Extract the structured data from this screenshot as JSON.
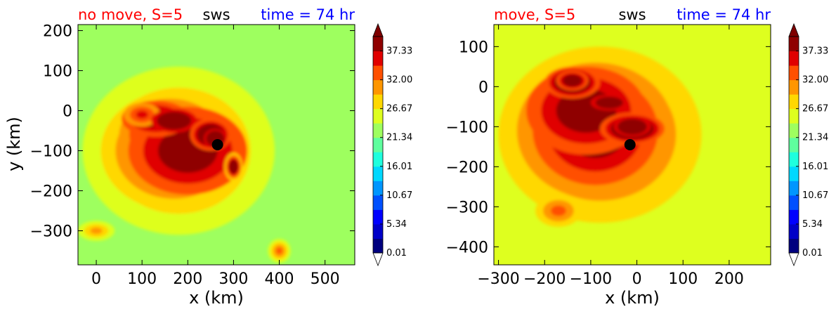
{
  "chart_data": [
    {
      "type": "heatmap",
      "title_left": "no move, S=5",
      "title_center": "sws",
      "title_right": "time = 74 hr",
      "title_colors": {
        "left": "#ff0000",
        "center": "#000000",
        "right": "#0000ff"
      },
      "xlabel": "x (km)",
      "ylabel": "y (km)",
      "xlim": [
        -40,
        565
      ],
      "ylim": [
        -385,
        215
      ],
      "xticks": [
        0,
        100,
        200,
        300,
        400,
        500
      ],
      "xtick_labels": [
        "0",
        "100",
        "200",
        "300",
        "400",
        "500"
      ],
      "yticks": [
        200,
        100,
        0,
        -100,
        -200,
        -300
      ],
      "ytick_labels": [
        "200",
        "100",
        "0",
        "−100",
        "−200",
        "−300"
      ],
      "colorbar": {
        "min": 0.01,
        "max": 40,
        "tick_values": [
          0.01,
          5.34,
          10.67,
          16.01,
          21.34,
          26.67,
          32.0,
          37.33
        ],
        "tick_labels": [
          "0.01",
          "5.34",
          "10.67",
          "16.01",
          "21.34",
          "26.67",
          "32.00",
          "37.33"
        ],
        "extend": "both"
      },
      "center_marker": {
        "x": 265,
        "y": -85
      },
      "background_value": 8,
      "blobs": [
        {
          "x": 180,
          "y": -100,
          "rx": 210,
          "ry": 210,
          "v": 4
        },
        {
          "x": 170,
          "y": -100,
          "rx": 160,
          "ry": 150,
          "v": 5
        },
        {
          "x": 160,
          "y": -60,
          "rx": 110,
          "ry": 90,
          "v": 5
        },
        {
          "x": 200,
          "y": -100,
          "rx": 130,
          "ry": 110,
          "v": 4
        },
        {
          "x": 130,
          "y": -20,
          "rx": 75,
          "ry": 45,
          "v": 4
        },
        {
          "x": 100,
          "y": -10,
          "rx": 40,
          "ry": 30,
          "v": 3
        },
        {
          "x": 170,
          "y": -25,
          "rx": 50,
          "ry": 30,
          "v": 4
        },
        {
          "x": 250,
          "y": -60,
          "rx": 45,
          "ry": 40,
          "v": 6
        },
        {
          "x": 260,
          "y": -70,
          "rx": 25,
          "ry": 25,
          "v": 5
        },
        {
          "x": 300,
          "y": -140,
          "rx": 20,
          "ry": 35,
          "v": 8
        },
        {
          "x": 0,
          "y": -300,
          "rx": 40,
          "ry": 25,
          "v": 3
        },
        {
          "x": 400,
          "y": -350,
          "rx": 25,
          "ry": 30,
          "v": 4
        }
      ]
    },
    {
      "type": "heatmap",
      "title_left": "move, S=5",
      "title_center": "sws",
      "title_right": "time = 74 hr",
      "title_colors": {
        "left": "#ff0000",
        "center": "#000000",
        "right": "#0000ff"
      },
      "xlabel": "x (km)",
      "ylabel": "",
      "xlim": [
        -310,
        290
      ],
      "ylim": [
        -445,
        155
      ],
      "xticks": [
        -300,
        -200,
        -100,
        0,
        100,
        200
      ],
      "xtick_labels": [
        "−300",
        "−200",
        "−100",
        "0",
        "100",
        "200"
      ],
      "yticks": [
        100,
        0,
        -100,
        -200,
        -300,
        -400
      ],
      "ytick_labels": [
        "100",
        "0",
        "−100",
        "−200",
        "−300",
        "−400"
      ],
      "colorbar": {
        "min": 0.01,
        "max": 40,
        "tick_values": [
          0.01,
          5.34,
          10.67,
          16.01,
          21.34,
          26.67,
          32.0,
          37.33
        ],
        "tick_labels": [
          "0.01",
          "5.34",
          "10.67",
          "16.01",
          "21.34",
          "26.67",
          "32.00",
          "37.33"
        ],
        "extend": "both"
      },
      "center_marker": {
        "x": -15,
        "y": -145
      },
      "background_value": 9,
      "blobs": [
        {
          "x": -80,
          "y": -120,
          "rx": 220,
          "ry": 220,
          "v": 4
        },
        {
          "x": -90,
          "y": -110,
          "rx": 170,
          "ry": 170,
          "v": 5
        },
        {
          "x": -110,
          "y": -60,
          "rx": 130,
          "ry": 110,
          "v": 4
        },
        {
          "x": -140,
          "y": 10,
          "rx": 60,
          "ry": 40,
          "v": 6
        },
        {
          "x": -140,
          "y": 15,
          "rx": 35,
          "ry": 25,
          "v": 5
        },
        {
          "x": -60,
          "y": -40,
          "rx": 40,
          "ry": 20,
          "v": 4
        },
        {
          "x": -10,
          "y": -105,
          "rx": 70,
          "ry": 40,
          "v": 6
        },
        {
          "x": -10,
          "y": -100,
          "rx": 40,
          "ry": 25,
          "v": 5
        },
        {
          "x": -170,
          "y": -310,
          "rx": 50,
          "ry": 40,
          "v": 3
        }
      ]
    }
  ]
}
